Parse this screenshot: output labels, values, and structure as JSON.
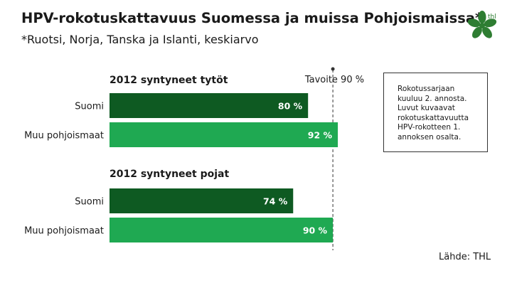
{
  "title": "HPV-rokotuskattavuus Suomessa ja muissa Pohjoismaissa*",
  "subtitle": "*Ruotsi, Norja, Tanska ja Islanti, keskiarvo",
  "logo": {
    "text": "thl",
    "icon": "thl-leaf-logo",
    "color": "#2e7d32"
  },
  "note": "Rokotussarjaan kuuluu 2. annosta. Luvut kuvaavat rokotuskattavuutta HPV-rokotteen 1. annoksen osalta.",
  "source": "Lähde: THL",
  "colors": {
    "suomi": "#0e5a22",
    "muu": "#1fa952",
    "target_line": "#333333"
  },
  "chart_data": {
    "type": "bar",
    "orientation": "horizontal",
    "xlim": [
      0,
      100
    ],
    "target": {
      "value": 90,
      "label": "Tavoite 90 %"
    },
    "groups": [
      {
        "title": "2012 syntyneet tytöt",
        "bars": [
          {
            "category": "Suomi",
            "value": 80,
            "label": "80 %",
            "color": "#0e5a22"
          },
          {
            "category": "Muu pohjoismaat",
            "value": 92,
            "label": "92 %",
            "color": "#1fa952"
          }
        ]
      },
      {
        "title": "2012 syntyneet pojat",
        "bars": [
          {
            "category": "Suomi",
            "value": 74,
            "label": "74 %",
            "color": "#0e5a22"
          },
          {
            "category": "Muu pohjoismaat",
            "value": 90,
            "label": "90 %",
            "color": "#1fa952"
          }
        ]
      }
    ]
  }
}
